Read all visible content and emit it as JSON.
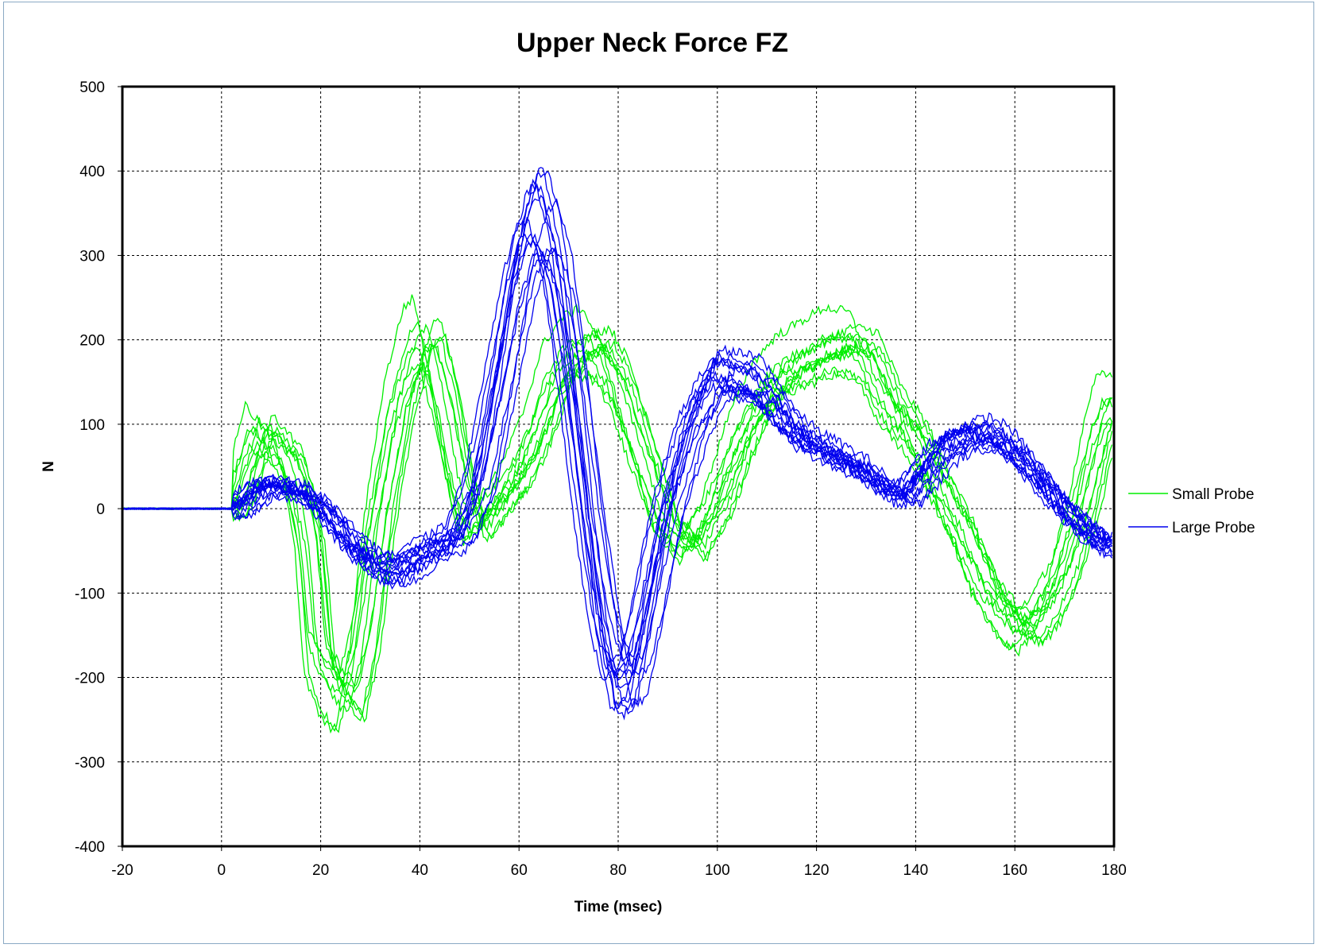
{
  "chart_data": {
    "type": "line",
    "title": "Upper Neck Force FZ",
    "xlabel": "Time (msec)",
    "ylabel": "N",
    "xlim": [
      -20,
      180
    ],
    "ylim": [
      -400,
      500
    ],
    "x_ticks": [
      "-20",
      "0",
      "20",
      "40",
      "60",
      "80",
      "100",
      "120",
      "140",
      "160",
      "180"
    ],
    "y_ticks": [
      "500",
      "400",
      "300",
      "200",
      "100",
      "0",
      "-100",
      "-200",
      "-300",
      "-400"
    ],
    "grid": true,
    "legend_position": "right",
    "series": [
      {
        "name": "Small Probe",
        "color": "#00ee00",
        "trace_count": 11,
        "x": [
          -20,
          0,
          3,
          5,
          8,
          11,
          14,
          16,
          18,
          20,
          23,
          26,
          29,
          32,
          36,
          40,
          42,
          45,
          48,
          51,
          55,
          60,
          64,
          68,
          72,
          76,
          80,
          85,
          90,
          95,
          100,
          105,
          110,
          115,
          120,
          125,
          130,
          135,
          140,
          145,
          150,
          155,
          160,
          163,
          166,
          170,
          174,
          178,
          180
        ],
        "values": [
          0,
          0,
          2,
          40,
          100,
          80,
          60,
          20,
          -40,
          -180,
          -220,
          -240,
          -160,
          -20,
          120,
          200,
          210,
          140,
          40,
          -30,
          0,
          40,
          90,
          160,
          190,
          200,
          160,
          70,
          -20,
          -50,
          0,
          80,
          140,
          170,
          185,
          200,
          195,
          130,
          90,
          30,
          -30,
          -100,
          -140,
          -150,
          -130,
          -80,
          0,
          100,
          130
        ]
      },
      {
        "name": "Large Probe",
        "color": "#0000ee",
        "trace_count": 14,
        "x": [
          -20,
          0,
          3,
          5,
          8,
          11,
          14,
          18,
          22,
          26,
          30,
          34,
          37,
          40,
          44,
          48,
          52,
          56,
          60,
          63,
          65,
          68,
          71,
          74,
          77,
          80,
          83,
          86,
          90,
          95,
          100,
          104,
          108,
          112,
          116,
          120,
          125,
          130,
          135,
          138,
          142,
          146,
          150,
          154,
          158,
          162,
          166,
          170,
          175,
          180
        ],
        "values": [
          0,
          0,
          2,
          10,
          25,
          28,
          25,
          15,
          -10,
          -40,
          -60,
          -75,
          -70,
          -55,
          -45,
          -30,
          30,
          150,
          280,
          340,
          345,
          280,
          150,
          0,
          -130,
          -210,
          -200,
          -120,
          0,
          100,
          160,
          155,
          150,
          120,
          90,
          75,
          60,
          45,
          20,
          15,
          45,
          75,
          85,
          90,
          80,
          55,
          30,
          0,
          -30,
          -45
        ]
      }
    ]
  }
}
